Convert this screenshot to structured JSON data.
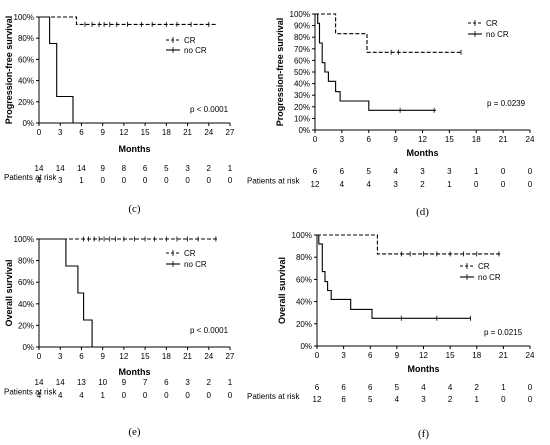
{
  "chart_data": [
    {
      "id": "c",
      "type": "line",
      "panel_label": "(c)",
      "ylabel": "Progression-free survival",
      "xlabel": "Months",
      "xlim": [
        0,
        27
      ],
      "ylim": [
        0,
        100
      ],
      "x_ticks": [
        0,
        3,
        6,
        9,
        12,
        15,
        18,
        21,
        24,
        27
      ],
      "y_ticks": [
        "0%",
        "20%",
        "40%",
        "60%",
        "80%",
        "100%"
      ],
      "series": [
        {
          "name": "CR",
          "style": "dashed",
          "steps": [
            [
              0,
              100
            ],
            [
              5.3,
              100
            ],
            [
              5.3,
              93
            ],
            [
              25,
              93
            ]
          ],
          "censor_marks": [
            [
              6.5,
              93
            ],
            [
              7.5,
              93
            ],
            [
              8.5,
              93
            ],
            [
              9.2,
              93
            ],
            [
              10,
              93
            ],
            [
              11,
              93
            ],
            [
              12.5,
              93
            ],
            [
              14.5,
              93
            ],
            [
              16,
              93
            ],
            [
              18,
              93
            ],
            [
              19.5,
              93
            ],
            [
              21.5,
              93
            ],
            [
              24,
              93
            ]
          ]
        },
        {
          "name": "no CR",
          "style": "solid",
          "steps": [
            [
              0,
              100
            ],
            [
              1.5,
              100
            ],
            [
              1.5,
              75
            ],
            [
              2.5,
              75
            ],
            [
              2.5,
              25
            ],
            [
              4.8,
              25
            ],
            [
              4.8,
              0
            ]
          ],
          "censor_marks": []
        }
      ],
      "pvalue": "p < 0.0001",
      "risk_table": {
        "label": "Patients at risk",
        "rows": [
          [
            "14",
            "14",
            "14",
            "9",
            "8",
            "6",
            "5",
            "3",
            "2",
            "1"
          ],
          [
            "4",
            "3",
            "1",
            "0",
            "0",
            "0",
            "0",
            "0",
            "0",
            "0"
          ]
        ]
      }
    },
    {
      "id": "d",
      "type": "line",
      "panel_label": "(d)",
      "ylabel": "Progression-free survival",
      "xlabel": "Months",
      "xlim": [
        0,
        24
      ],
      "ylim": [
        0,
        100
      ],
      "x_ticks": [
        0,
        3,
        6,
        9,
        12,
        15,
        18,
        21,
        24
      ],
      "y_ticks": [
        "0%",
        "10%",
        "20%",
        "30%",
        "40%",
        "50%",
        "60%",
        "70%",
        "80%",
        "90%",
        "100%"
      ],
      "series": [
        {
          "name": "CR",
          "style": "dashed",
          "steps": [
            [
              0,
              100
            ],
            [
              2.3,
              100
            ],
            [
              2.3,
              83
            ],
            [
              5.8,
              83
            ],
            [
              5.8,
              67
            ],
            [
              16.5,
              67
            ]
          ],
          "censor_marks": [
            [
              8.5,
              67
            ],
            [
              9.3,
              67
            ],
            [
              16.3,
              67
            ]
          ]
        },
        {
          "name": "no CR",
          "style": "solid",
          "steps": [
            [
              0,
              100
            ],
            [
              0.3,
              100
            ],
            [
              0.3,
              92
            ],
            [
              0.5,
              92
            ],
            [
              0.5,
              75
            ],
            [
              0.8,
              75
            ],
            [
              0.8,
              58
            ],
            [
              1.1,
              58
            ],
            [
              1.1,
              50
            ],
            [
              1.5,
              50
            ],
            [
              1.5,
              42
            ],
            [
              2.3,
              42
            ],
            [
              2.3,
              33
            ],
            [
              2.8,
              33
            ],
            [
              2.8,
              25
            ],
            [
              6,
              25
            ],
            [
              6,
              17
            ],
            [
              13.5,
              17
            ]
          ],
          "censor_marks": [
            [
              9.5,
              17
            ],
            [
              13.3,
              17
            ]
          ]
        }
      ],
      "pvalue": "p = 0.0239",
      "risk_table": {
        "label": "Patients at risk",
        "rows": [
          [
            "6",
            "6",
            "5",
            "4",
            "3",
            "3",
            "1",
            "0",
            "0"
          ],
          [
            "12",
            "4",
            "4",
            "3",
            "2",
            "1",
            "0",
            "0",
            "0"
          ]
        ]
      }
    },
    {
      "id": "e",
      "type": "line",
      "panel_label": "(e)",
      "ylabel": "Overall survival",
      "xlabel": "Months",
      "xlim": [
        0,
        27
      ],
      "ylim": [
        0,
        100
      ],
      "x_ticks": [
        0,
        3,
        6,
        9,
        12,
        15,
        18,
        21,
        24,
        27
      ],
      "y_ticks": [
        "0%",
        "20%",
        "40%",
        "60%",
        "80%",
        "100%"
      ],
      "series": [
        {
          "name": "CR",
          "style": "dashed",
          "steps": [
            [
              0,
              100
            ],
            [
              25.3,
              100
            ]
          ],
          "censor_marks": [
            [
              6.3,
              100
            ],
            [
              7,
              100
            ],
            [
              7.8,
              100
            ],
            [
              8.5,
              100
            ],
            [
              9.2,
              100
            ],
            [
              10,
              100
            ],
            [
              10.8,
              100
            ],
            [
              12,
              100
            ],
            [
              13.5,
              100
            ],
            [
              15,
              100
            ],
            [
              16.3,
              100
            ],
            [
              18,
              100
            ],
            [
              19.5,
              100
            ],
            [
              21,
              100
            ],
            [
              22.5,
              100
            ],
            [
              25,
              100
            ]
          ]
        },
        {
          "name": "no CR",
          "style": "solid",
          "steps": [
            [
              0,
              100
            ],
            [
              3.8,
              100
            ],
            [
              3.8,
              75
            ],
            [
              5.5,
              75
            ],
            [
              5.5,
              50
            ],
            [
              6.3,
              50
            ],
            [
              6.3,
              25
            ],
            [
              7.5,
              25
            ],
            [
              7.5,
              0
            ]
          ],
          "censor_marks": []
        }
      ],
      "pvalue": "p < 0.0001",
      "risk_table": {
        "label": "Patients at risk",
        "rows": [
          [
            "14",
            "14",
            "13",
            "10",
            "9",
            "7",
            "6",
            "3",
            "2",
            "1"
          ],
          [
            "4",
            "4",
            "4",
            "1",
            "0",
            "0",
            "0",
            "0",
            "0",
            "0"
          ]
        ]
      }
    },
    {
      "id": "f",
      "type": "line",
      "panel_label": "(f)",
      "ylabel": "Overall survival",
      "xlabel": "Months",
      "xlim": [
        0,
        24
      ],
      "ylim": [
        0,
        100
      ],
      "x_ticks": [
        0,
        3,
        6,
        9,
        12,
        15,
        18,
        21,
        24
      ],
      "y_ticks": [
        "0%",
        "20%",
        "40%",
        "60%",
        "80%",
        "100%"
      ],
      "series": [
        {
          "name": "CR",
          "style": "dashed",
          "steps": [
            [
              0,
              100
            ],
            [
              6.8,
              100
            ],
            [
              6.8,
              83
            ],
            [
              20.8,
              83
            ]
          ],
          "censor_marks": [
            [
              9.5,
              83
            ],
            [
              10.5,
              83
            ],
            [
              12,
              83
            ],
            [
              13.5,
              83
            ],
            [
              15,
              83
            ],
            [
              16.5,
              83
            ],
            [
              18,
              83
            ],
            [
              20.5,
              83
            ]
          ]
        },
        {
          "name": "no CR",
          "style": "solid",
          "steps": [
            [
              0,
              100
            ],
            [
              0.2,
              100
            ],
            [
              0.2,
              92
            ],
            [
              0.6,
              92
            ],
            [
              0.6,
              67
            ],
            [
              0.9,
              67
            ],
            [
              0.9,
              58
            ],
            [
              1.2,
              58
            ],
            [
              1.2,
              50
            ],
            [
              1.6,
              50
            ],
            [
              1.6,
              42
            ],
            [
              3.8,
              42
            ],
            [
              3.8,
              33
            ],
            [
              6.2,
              33
            ],
            [
              6.2,
              25
            ],
            [
              17.3,
              25
            ]
          ],
          "censor_marks": [
            [
              9.5,
              25
            ],
            [
              13.5,
              25
            ],
            [
              17.3,
              25
            ]
          ]
        }
      ],
      "pvalue": "p = 0.0215",
      "risk_table": {
        "label": "Patients at risk",
        "rows": [
          [
            "6",
            "6",
            "6",
            "5",
            "4",
            "4",
            "2",
            "1",
            "0"
          ],
          [
            "12",
            "6",
            "5",
            "4",
            "3",
            "2",
            "1",
            "0",
            "0"
          ]
        ]
      }
    }
  ]
}
